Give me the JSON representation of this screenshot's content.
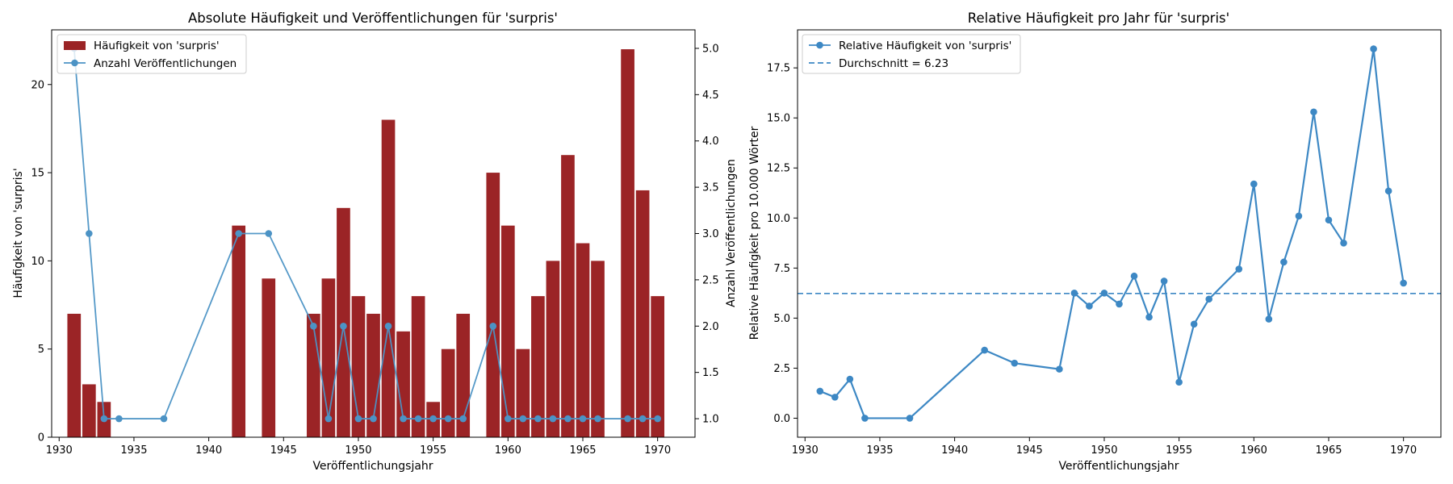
{
  "charts": [
    {
      "type": "bar",
      "title": "Absolute Häufigkeit und Veröffentlichungen für 'surpris'",
      "xlabel": "Veröffentlichungsjahr",
      "ylabel": "Häufigkeit von 'surpris'",
      "y2label": "Anzahl Veröffentlichungen",
      "xlim": [
        1929.5,
        1972.5
      ],
      "ylim": [
        0,
        23.1
      ],
      "y2lim": [
        0.8,
        5.2
      ],
      "xticks": [
        1930,
        1935,
        1940,
        1945,
        1950,
        1955,
        1960,
        1965,
        1970
      ],
      "yticks": [
        0,
        5,
        10,
        15,
        20
      ],
      "y2ticks": [
        1.0,
        1.5,
        2.0,
        2.5,
        3.0,
        3.5,
        4.0,
        4.5,
        5.0
      ],
      "legend_position": "upper-left",
      "bar_color": "#9b2426",
      "line_color": "#4c93c5",
      "bar_series": {
        "name": "Häufigkeit von 'surpris'",
        "x": [
          1931,
          1932,
          1933,
          1942,
          1944,
          1947,
          1948,
          1949,
          1950,
          1951,
          1952,
          1953,
          1954,
          1955,
          1956,
          1957,
          1959,
          1960,
          1961,
          1962,
          1963,
          1964,
          1965,
          1966,
          1968,
          1969,
          1970
        ],
        "values": [
          7,
          3,
          2,
          12,
          9,
          7,
          9,
          13,
          8,
          7,
          18,
          6,
          8,
          2,
          5,
          7,
          15,
          12,
          5,
          8,
          10,
          16,
          11,
          10,
          22,
          14,
          8
        ]
      },
      "line_series": {
        "name": "Anzahl Veröffentlichungen",
        "x": [
          1931,
          1932,
          1933,
          1934,
          1937,
          1942,
          1944,
          1947,
          1948,
          1949,
          1950,
          1951,
          1952,
          1953,
          1954,
          1955,
          1956,
          1957,
          1959,
          1960,
          1961,
          1962,
          1963,
          1964,
          1965,
          1966,
          1968,
          1969,
          1970
        ],
        "values": [
          5,
          3,
          1,
          1,
          1,
          3,
          3,
          2,
          1,
          2,
          1,
          1,
          2,
          1,
          1,
          1,
          1,
          1,
          2,
          1,
          1,
          1,
          1,
          1,
          1,
          1,
          1,
          1,
          1
        ]
      }
    },
    {
      "type": "line",
      "title": "Relative Häufigkeit pro Jahr für 'surpris'",
      "xlabel": "Veröffentlichungsjahr",
      "ylabel": "Relative Häufigkeit pro 10.000 Wörter",
      "xlim": [
        1929.5,
        1972.5
      ],
      "ylim": [
        -0.95,
        19.4
      ],
      "xticks": [
        1930,
        1935,
        1940,
        1945,
        1950,
        1955,
        1960,
        1965,
        1970
      ],
      "yticks": [
        0.0,
        2.5,
        5.0,
        7.5,
        10.0,
        12.5,
        15.0,
        17.5
      ],
      "legend_position": "upper-left",
      "line_color": "#3d88c4",
      "mean": {
        "label": "Durchschnitt = 6.23",
        "value": 6.23
      },
      "series": [
        {
          "name": "Relative Häufigkeit von 'surpris'",
          "x": [
            1931,
            1932,
            1933,
            1934,
            1937,
            1942,
            1944,
            1947,
            1948,
            1949,
            1950,
            1951,
            1952,
            1953,
            1954,
            1955,
            1956,
            1957,
            1959,
            1960,
            1961,
            1962,
            1963,
            1964,
            1965,
            1966,
            1968,
            1969,
            1970
          ],
          "values": [
            1.35,
            1.05,
            1.95,
            0.0,
            0.0,
            3.4,
            2.75,
            2.45,
            6.25,
            5.6,
            6.25,
            5.7,
            7.1,
            5.05,
            6.85,
            1.8,
            4.7,
            5.95,
            7.45,
            11.7,
            4.95,
            7.8,
            10.1,
            15.3,
            9.9,
            8.75,
            18.45,
            11.35,
            6.75
          ]
        }
      ]
    }
  ]
}
